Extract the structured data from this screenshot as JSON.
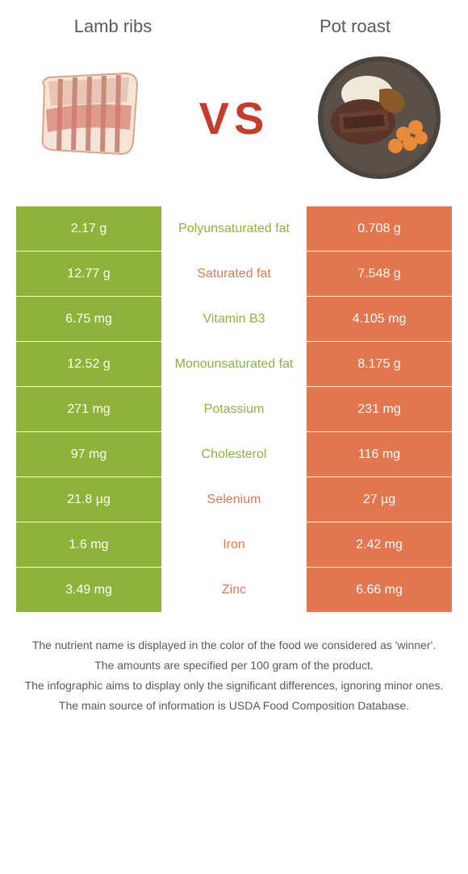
{
  "colors": {
    "left_bg": "#8fb23b",
    "right_bg": "#e2774f",
    "mid_text_left": "#8fb23b",
    "mid_text_right": "#e2774f",
    "title": "#5a5a5a",
    "vs": "#c73b2a"
  },
  "header": {
    "left_title": "Lamb ribs",
    "right_title": "Pot roast",
    "vs": "VS"
  },
  "rows": [
    {
      "left": "2.17 g",
      "label": "Polyunsaturated fat",
      "right": "0.708 g",
      "winner": "left"
    },
    {
      "left": "12.77 g",
      "label": "Saturated fat",
      "right": "7.548 g",
      "winner": "right"
    },
    {
      "left": "6.75 mg",
      "label": "Vitamin B3",
      "right": "4.105 mg",
      "winner": "left"
    },
    {
      "left": "12.52 g",
      "label": "Monounsaturated fat",
      "right": "8.175 g",
      "winner": "left"
    },
    {
      "left": "271 mg",
      "label": "Potassium",
      "right": "231 mg",
      "winner": "left"
    },
    {
      "left": "97 mg",
      "label": "Cholesterol",
      "right": "116 mg",
      "winner": "left"
    },
    {
      "left": "21.8 µg",
      "label": "Selenium",
      "right": "27 µg",
      "winner": "right"
    },
    {
      "left": "1.6 mg",
      "label": "Iron",
      "right": "2.42 mg",
      "winner": "right"
    },
    {
      "left": "3.49 mg",
      "label": "Zinc",
      "right": "6.66 mg",
      "winner": "right"
    }
  ],
  "footer": {
    "line1": "The nutrient name is displayed in the color of the food we considered as 'winner'.",
    "line2": "The amounts are specified per 100 gram of the product.",
    "line3": "The infographic aims to display only the significant differences, ignoring minor ones.",
    "line4": "The main source of information is USDA Food Composition Database."
  }
}
